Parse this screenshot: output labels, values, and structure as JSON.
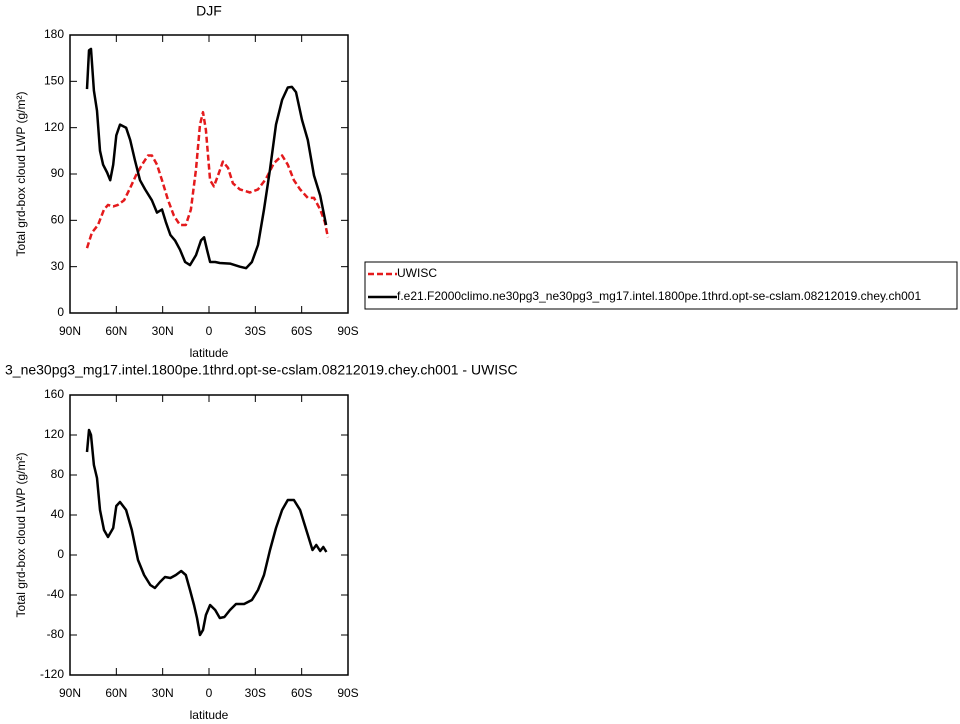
{
  "chart_data": [
    {
      "type": "line",
      "title": "DJF",
      "xlabel": "latitude",
      "ylabel": "Total grd-box cloud LWP (g/m²)",
      "xlim": [
        90,
        -90
      ],
      "ylim": [
        0,
        180
      ],
      "xticks": [
        {
          "value": 90,
          "label": "90N"
        },
        {
          "value": 60,
          "label": "60N"
        },
        {
          "value": 30,
          "label": "30N"
        },
        0,
        {
          "value": -30,
          "label": "30S"
        },
        {
          "value": -60,
          "label": "60S"
        },
        {
          "value": -90,
          "label": "90S"
        }
      ],
      "yticks": [
        0,
        30,
        60,
        90,
        120,
        150,
        180
      ],
      "legend": "right",
      "series": [
        {
          "name": "UWISC",
          "color": "#e41a1c",
          "line_style": "dashed",
          "x": [
            79,
            75.8,
            71.9,
            68,
            65.4,
            62,
            59,
            55,
            51,
            47.3,
            43.4,
            39.5,
            37,
            33.7,
            30.4,
            26.5,
            22.7,
            18.8,
            15,
            11.7,
            8.4,
            5.8,
            3.9,
            2,
            -0.7,
            -3.2,
            -5.8,
            -9,
            -12.3,
            -15.5,
            -20,
            -26.5,
            -31.7,
            -37,
            -42,
            -47.3,
            -51,
            -55,
            -59,
            -64,
            -68,
            -72,
            -75,
            -77
          ],
          "values": [
            42,
            52,
            57,
            67,
            70,
            69,
            70,
            73,
            81,
            89,
            96,
            102,
            102,
            96,
            86,
            73,
            63,
            57,
            57,
            67,
            93,
            122,
            130,
            118.5,
            86,
            82,
            89,
            98,
            94,
            84,
            80,
            78,
            80,
            87,
            97,
            102,
            96,
            86,
            80,
            74.5,
            74.5,
            67,
            59,
            49
          ]
        },
        {
          "name": "f.e21.F2000climo.ne30pg3_ne30pg3_mg17.intel.1800pe.1thrd.opt-se-cslam.08212019.chey.ch001",
          "color": "#000000",
          "line_style": "solid",
          "x": [
            79,
            77.7,
            76.4,
            74.5,
            72.5,
            70.6,
            68.6,
            66,
            64,
            62,
            60,
            57.6,
            53.7,
            51,
            48,
            44.7,
            41.4,
            37,
            33.7,
            30.4,
            28,
            25,
            22,
            18.8,
            15.5,
            12.3,
            8.4,
            5.2,
            3.2,
            1.3,
            -0.7,
            -4,
            -7,
            -13.6,
            -20,
            -24,
            -27.8,
            -31.7,
            -35.6,
            -39.5,
            -43.4,
            -47.3,
            -51,
            -53.7,
            -56.3,
            -60.2,
            -64,
            -68,
            -72,
            -75.8
          ],
          "values": [
            145,
            170,
            171,
            144,
            131,
            105,
            96,
            91,
            86,
            96,
            115,
            122,
            120,
            112,
            99,
            86,
            80,
            73,
            65,
            67,
            59,
            50.5,
            47,
            41,
            33,
            31,
            37.5,
            47,
            49,
            41,
            33,
            33,
            32.4,
            32,
            30,
            29,
            33,
            44,
            67,
            93,
            122,
            138,
            146,
            146.4,
            143,
            125,
            112,
            89,
            76,
            57
          ]
        }
      ]
    },
    {
      "type": "line",
      "title": "3_ne30pg3_mg17.intel.1800pe.1thrd.opt-se-cslam.08212019.chey.ch001 - UWISC",
      "xlabel": "latitude",
      "ylabel": "Total grd-box cloud LWP (g/m²)",
      "xlim": [
        90,
        -90
      ],
      "ylim": [
        -120,
        160
      ],
      "xticks": [
        {
          "value": 90,
          "label": "90N"
        },
        {
          "value": 60,
          "label": "60N"
        },
        {
          "value": 30,
          "label": "30N"
        },
        0,
        {
          "value": -30,
          "label": "30S"
        },
        {
          "value": -60,
          "label": "60S"
        },
        {
          "value": -90,
          "label": "90S"
        }
      ],
      "yticks": [
        -120,
        -80,
        -40,
        0,
        40,
        80,
        120,
        160
      ],
      "series": [
        {
          "color": "#000000",
          "line_style": "solid",
          "x": [
            79,
            77.7,
            76.4,
            74.5,
            72.5,
            70.6,
            68,
            65.4,
            62,
            60,
            57.6,
            53.7,
            50,
            46,
            42,
            38,
            35,
            31.7,
            28.5,
            25,
            21.4,
            18,
            15,
            12.3,
            9.7,
            7.8,
            5.8,
            3.9,
            2,
            -0.7,
            -4,
            -7,
            -10,
            -13.6,
            -17.5,
            -22.7,
            -27.8,
            -31.7,
            -35.6,
            -39.5,
            -43.4,
            -47.3,
            -51,
            -55,
            -59,
            -63,
            -67,
            -69.5,
            -72,
            -74,
            -76
          ],
          "values": [
            103,
            125,
            120,
            90,
            77,
            45,
            25,
            18,
            27,
            49,
            53,
            45,
            25,
            -5,
            -20,
            -30,
            -33,
            -27,
            -22,
            -23,
            -20,
            -16,
            -20,
            -35,
            -50,
            -63,
            -80,
            -75,
            -60,
            -50,
            -55,
            -63,
            -62,
            -55,
            -49,
            -49,
            -45,
            -35,
            -20,
            5,
            27,
            45,
            55,
            55,
            45,
            25,
            5,
            10,
            4,
            8,
            3
          ]
        }
      ]
    }
  ]
}
